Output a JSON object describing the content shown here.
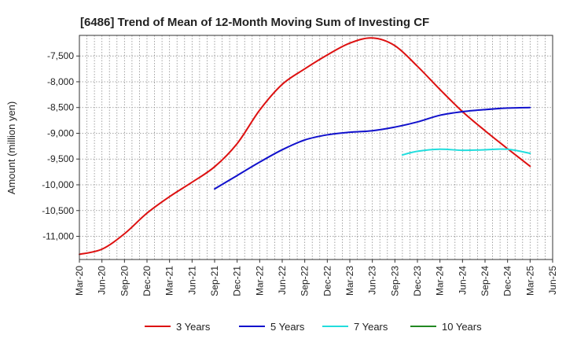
{
  "chart_data": {
    "type": "line",
    "title": "[6486]  Trend of Mean of 12-Month Moving Sum of Investing CF",
    "xlabel": "",
    "ylabel": "Amount (million yen)",
    "ylim": [
      -11450,
      -7100
    ],
    "yticks": [
      -11000,
      -10500,
      -10000,
      -9500,
      -9000,
      -8500,
      -8000,
      -7500
    ],
    "ytick_labels": [
      "-11,000",
      "-10,500",
      "-10,000",
      "-9,500",
      "-9,000",
      "-8,500",
      "-8,000",
      "-7,500"
    ],
    "xlim": [
      0,
      63
    ],
    "xtick_labels": [
      "Mar-20",
      "Jun-20",
      "Sep-20",
      "Dec-20",
      "Mar-21",
      "Jun-21",
      "Sep-21",
      "Dec-21",
      "Mar-22",
      "Jun-22",
      "Sep-22",
      "Dec-22",
      "Mar-23",
      "Jun-23",
      "Sep-23",
      "Dec-23",
      "Mar-24",
      "Jun-24",
      "Sep-24",
      "Dec-24",
      "Mar-25",
      "Jun-25"
    ],
    "grid": true,
    "legend_position": "bottom",
    "series": [
      {
        "name": "3 Years",
        "color": "#dd1111",
        "points": [
          [
            0,
            -11350
          ],
          [
            3,
            -11250
          ],
          [
            6,
            -10950
          ],
          [
            9,
            -10550
          ],
          [
            12,
            -10230
          ],
          [
            15,
            -9950
          ],
          [
            18,
            -9650
          ],
          [
            21,
            -9200
          ],
          [
            24,
            -8550
          ],
          [
            27,
            -8050
          ],
          [
            30,
            -7750
          ],
          [
            33,
            -7480
          ],
          [
            36,
            -7250
          ],
          [
            39,
            -7150
          ],
          [
            42,
            -7300
          ],
          [
            45,
            -7700
          ],
          [
            48,
            -8150
          ],
          [
            51,
            -8580
          ],
          [
            54,
            -8950
          ],
          [
            57,
            -9300
          ],
          [
            60,
            -9640
          ]
        ]
      },
      {
        "name": "5 Years",
        "color": "#1111cc",
        "points": [
          [
            18,
            -10080
          ],
          [
            21,
            -9820
          ],
          [
            24,
            -9560
          ],
          [
            27,
            -9320
          ],
          [
            30,
            -9130
          ],
          [
            33,
            -9030
          ],
          [
            36,
            -8980
          ],
          [
            39,
            -8950
          ],
          [
            42,
            -8880
          ],
          [
            45,
            -8780
          ],
          [
            48,
            -8650
          ],
          [
            51,
            -8580
          ],
          [
            54,
            -8540
          ],
          [
            57,
            -8510
          ],
          [
            60,
            -8500
          ]
        ]
      },
      {
        "name": "7 Years",
        "color": "#22dddd",
        "points": [
          [
            43,
            -9420
          ],
          [
            45,
            -9350
          ],
          [
            48,
            -9310
          ],
          [
            51,
            -9330
          ],
          [
            54,
            -9320
          ],
          [
            57,
            -9310
          ],
          [
            60,
            -9390
          ]
        ]
      },
      {
        "name": "10 Years",
        "color": "#228822",
        "points": []
      }
    ]
  }
}
